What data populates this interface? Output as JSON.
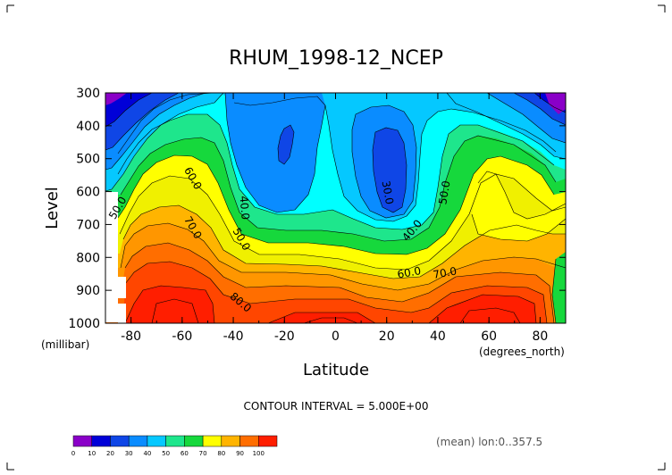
{
  "chart_data": {
    "type": "contour",
    "title": "RHUM_1998-12_NCEP",
    "xlabel": "Latitude",
    "ylabel": "Level",
    "x_unit": "(degrees_north)",
    "y_unit": "(millibar)",
    "x_ticks": [
      "-80",
      "-60",
      "-40",
      "-20",
      "0",
      "20",
      "40",
      "60",
      "80"
    ],
    "y_ticks": [
      "300",
      "400",
      "500",
      "600",
      "700",
      "800",
      "900",
      "1000"
    ],
    "xlim": [
      -90,
      90
    ],
    "ylim": [
      1000,
      300
    ],
    "contour_interval_text": "CONTOUR INTERVAL = 5.000E+00",
    "subset_text": "(mean) lon:0..357.5",
    "contour_labels": [
      {
        "text": "50.0",
        "lat": -84,
        "lev": 655,
        "rot": -60
      },
      {
        "text": "60.0",
        "lat": -57,
        "lev": 565,
        "rot": 60
      },
      {
        "text": "70.0",
        "lat": -57,
        "lev": 715,
        "rot": 60
      },
      {
        "text": "40.0",
        "lat": -37,
        "lev": 650,
        "rot": 85
      },
      {
        "text": "50.0",
        "lat": -38,
        "lev": 750,
        "rot": 60
      },
      {
        "text": "80.0",
        "lat": -38,
        "lev": 945,
        "rot": 40
      },
      {
        "text": "30.0",
        "lat": 19,
        "lev": 605,
        "rot": 80
      },
      {
        "text": "40.0",
        "lat": 31,
        "lev": 725,
        "rot": -50
      },
      {
        "text": "60.0",
        "lat": 29,
        "lev": 857,
        "rot": -10
      },
      {
        "text": "70.0",
        "lat": 43,
        "lev": 858,
        "rot": -10
      },
      {
        "text": "50.0",
        "lat": 44,
        "lev": 605,
        "rot": -80
      }
    ],
    "colorbar": {
      "levels": [
        "0",
        "10",
        "20",
        "30",
        "40",
        "50",
        "60",
        "70",
        "80",
        "90",
        "100"
      ],
      "colors": [
        "#8a00c8",
        "#0000d8",
        "#0f46e6",
        "#0a8cff",
        "#05c8ff",
        "#1ee68c",
        "#16d83c",
        "#ffff00",
        "#ffb400",
        "#ff6e00",
        "#ff1e00"
      ]
    },
    "colors": {
      "purple": "#8a00c8",
      "blue_10": "#0000d8",
      "blue_20": "#0f46e6",
      "blue_30": "#0a8cff",
      "cyan_40": "#05c8ff",
      "aqua_45": "#00ffff",
      "green_50": "#1ee68c",
      "green_55": "#16d83c",
      "yellow_60": "#ffff00",
      "yellow_65": "#f0f000",
      "orange_70": "#ffb400",
      "orange_75": "#ff9600",
      "red_80": "#ff6e00",
      "red_85": "#ff4600",
      "red_90": "#ff1e00"
    }
  }
}
